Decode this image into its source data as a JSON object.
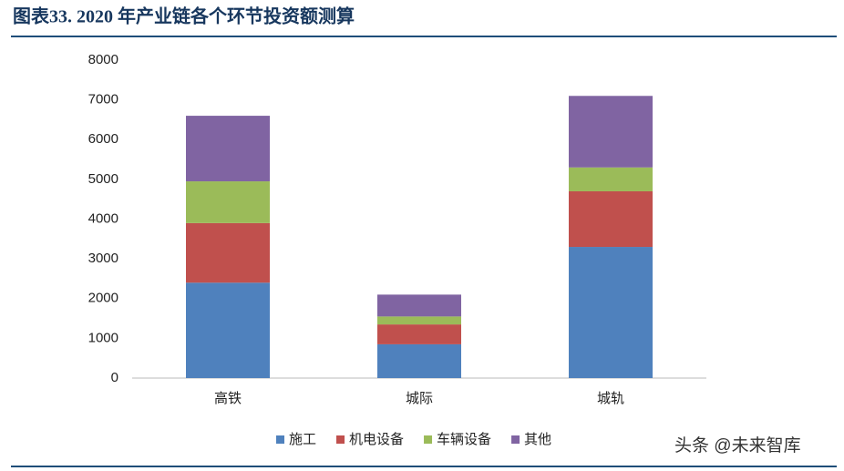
{
  "chart_data": {
    "type": "stacked-bar",
    "title": "图表33.  2020 年产业链各个环节投资额测算",
    "categories": [
      "高铁",
      "城际",
      "城轨"
    ],
    "series": [
      {
        "name": "施工",
        "color": "#4f81bd",
        "values": [
          2400,
          850,
          3300
        ]
      },
      {
        "name": "机电设备",
        "color": "#c0504d",
        "values": [
          1500,
          500,
          1400
        ]
      },
      {
        "name": "车辆设备",
        "color": "#9bbb59",
        "values": [
          1050,
          200,
          600
        ]
      },
      {
        "name": "其他",
        "color": "#8064a2",
        "values": [
          1650,
          550,
          1800
        ]
      }
    ],
    "ylim": [
      0,
      8000
    ],
    "yticks": [
      0,
      1000,
      2000,
      3000,
      4000,
      5000,
      6000,
      7000,
      8000
    ],
    "legend": "bottom"
  },
  "watermark": "头条 @未来智库"
}
